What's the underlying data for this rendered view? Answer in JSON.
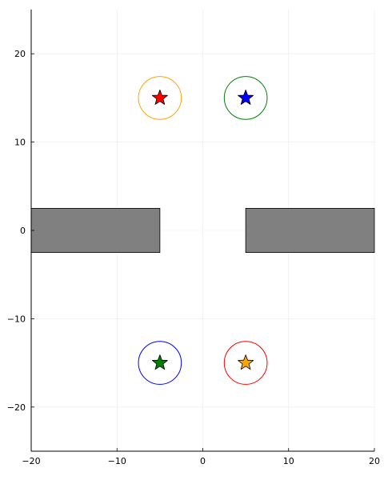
{
  "chart_data": {
    "type": "scatter",
    "title": "",
    "xlabel": "",
    "ylabel": "",
    "xlim": [
      -20,
      20
    ],
    "ylim": [
      -25,
      25
    ],
    "grid": true,
    "legend": "none",
    "x_ticks": [
      {
        "value": -20,
        "label": "−20"
      },
      {
        "value": -10,
        "label": "−10"
      },
      {
        "value": 0,
        "label": "0"
      },
      {
        "value": 10,
        "label": "10"
      },
      {
        "value": 20,
        "label": "20"
      }
    ],
    "y_ticks": [
      {
        "value": -20,
        "label": "−20"
      },
      {
        "value": -10,
        "label": "−10"
      },
      {
        "value": 0,
        "label": "0"
      },
      {
        "value": 10,
        "label": "10"
      },
      {
        "value": 20,
        "label": "20"
      }
    ],
    "obstacles": [
      {
        "x0": -20,
        "x1": -5,
        "y0": -2.5,
        "y1": 2.5,
        "color": "#808080"
      },
      {
        "x0": 5,
        "x1": 20,
        "y0": -2.5,
        "y1": 2.5,
        "color": "#808080"
      }
    ],
    "circles": [
      {
        "cx": -5,
        "cy": 15,
        "r": 2.5,
        "color": "#ffa500"
      },
      {
        "cx": 5,
        "cy": 15,
        "r": 2.5,
        "color": "#008000"
      },
      {
        "cx": -5,
        "cy": -15,
        "r": 2.5,
        "color": "#0000ff"
      },
      {
        "cx": 5,
        "cy": -15,
        "r": 2.5,
        "color": "#ff0000"
      }
    ],
    "stars": [
      {
        "x": -5,
        "y": 15,
        "color": "#ff0000"
      },
      {
        "x": 5,
        "y": 15,
        "color": "#0000ff"
      },
      {
        "x": -5,
        "y": -15,
        "color": "#008000"
      },
      {
        "x": 5,
        "y": -15,
        "color": "#ffa500"
      }
    ]
  }
}
